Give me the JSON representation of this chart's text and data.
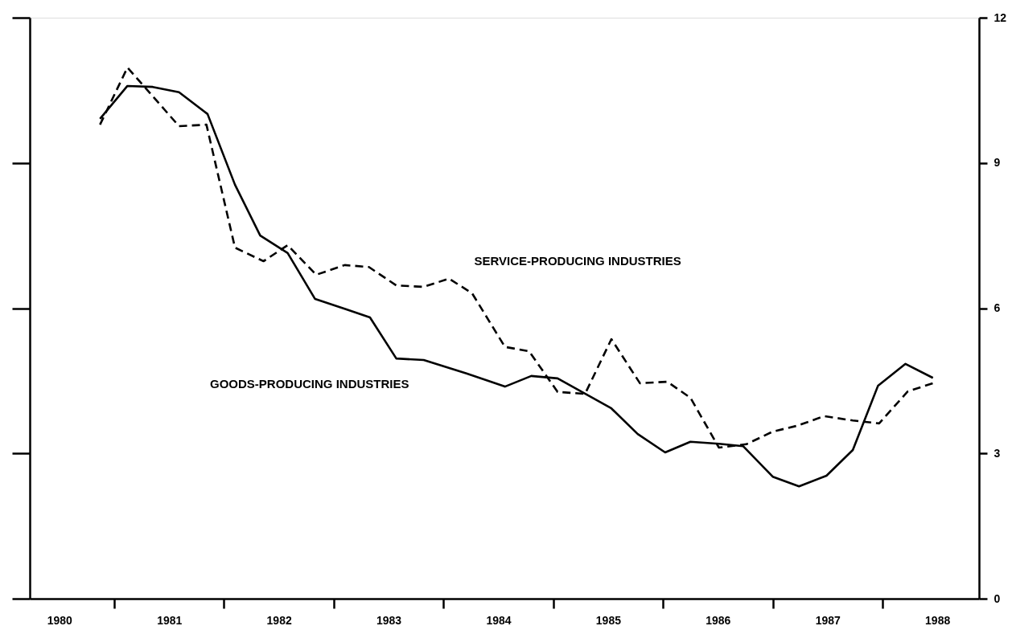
{
  "chart_data": {
    "type": "line",
    "xlim": [
      1980.23,
      1988.88
    ],
    "ylim": [
      0,
      12
    ],
    "xticks": [
      {
        "value": 1980.5,
        "label": "1980"
      },
      {
        "value": 1981,
        "label": null
      },
      {
        "value": 1981.5,
        "label": "1981"
      },
      {
        "value": 1982,
        "label": null
      },
      {
        "value": 1982.5,
        "label": "1982"
      },
      {
        "value": 1983,
        "label": null
      },
      {
        "value": 1983.5,
        "label": "1983"
      },
      {
        "value": 1984,
        "label": null
      },
      {
        "value": 1984.5,
        "label": "1984"
      },
      {
        "value": 1985,
        "label": null
      },
      {
        "value": 1985.5,
        "label": "1985"
      },
      {
        "value": 1986,
        "label": null
      },
      {
        "value": 1986.5,
        "label": "1986"
      },
      {
        "value": 1987,
        "label": null
      },
      {
        "value": 1987.5,
        "label": "1987"
      },
      {
        "value": 1988,
        "label": null
      },
      {
        "value": 1988.5,
        "label": "1988"
      }
    ],
    "yticks": [
      0,
      3,
      6,
      9,
      12
    ],
    "marker": "none",
    "series": [
      {
        "name": "GOODS-PRODUCING INDUSTRIES",
        "color": "#000000",
        "line_style": "solid",
        "x": [
          1980.87,
          1981.12,
          1981.35,
          1981.59,
          1981.85,
          1982.1,
          1982.33,
          1982.58,
          1982.83,
          1983.11,
          1983.33,
          1983.57,
          1983.82,
          1984.21,
          1984.56,
          1984.8,
          1985.04,
          1985.53,
          1985.77,
          1986.02,
          1986.25,
          1986.51,
          1986.73,
          1987.0,
          1987.24,
          1987.49,
          1987.73,
          1987.96,
          1988.21,
          1988.46
        ],
        "values": [
          9.91,
          10.59,
          10.57,
          10.46,
          10.01,
          8.55,
          7.5,
          7.14,
          6.19,
          5.98,
          5.81,
          4.96,
          4.93,
          4.65,
          4.38,
          4.6,
          4.55,
          3.93,
          3.4,
          3.02,
          3.24,
          3.2,
          3.15,
          2.52,
          2.32,
          2.54,
          3.07,
          4.4,
          4.85,
          4.56
        ]
      },
      {
        "name": "SERVICE-PRODUCING INDUSTRIES",
        "color": "#000000",
        "line_style": "dashed",
        "x": [
          1980.87,
          1981.12,
          1981.59,
          1981.84,
          1982.1,
          1982.36,
          1982.58,
          1982.84,
          1983.1,
          1983.32,
          1983.57,
          1983.82,
          1984.05,
          1984.26,
          1984.56,
          1984.78,
          1985.04,
          1985.29,
          1985.53,
          1985.79,
          1986.04,
          1986.25,
          1986.51,
          1986.76,
          1987.0,
          1987.22,
          1987.47,
          1987.73,
          1987.97,
          1988.23,
          1988.46
        ],
        "values": [
          9.79,
          10.97,
          9.76,
          9.79,
          7.25,
          6.97,
          7.3,
          6.69,
          6.89,
          6.85,
          6.47,
          6.44,
          6.61,
          6.31,
          5.2,
          5.11,
          4.27,
          4.23,
          5.36,
          4.45,
          4.48,
          4.15,
          3.12,
          3.19,
          3.45,
          3.57,
          3.77,
          3.68,
          3.62,
          4.28,
          4.45
        ]
      }
    ]
  }
}
